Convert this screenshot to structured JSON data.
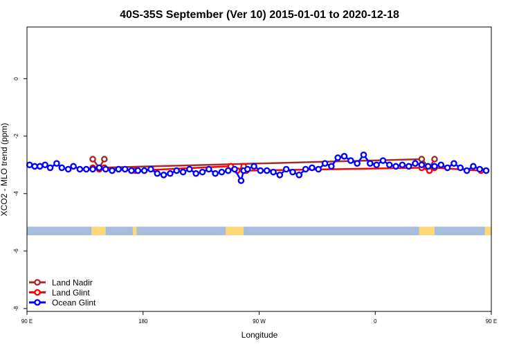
{
  "chart_data": {
    "type": "line",
    "title": "40S-35S September (Ver 10)   2015-01-01 to 2020-12-18",
    "xlabel": "Longitude",
    "ylabel": "XCO2 - MLO trend (ppm)",
    "xlim": [
      90,
      450
    ],
    "ylim": [
      -8.1,
      1.8
    ],
    "x_ticks": [
      {
        "value": 90,
        "label": "90 E"
      },
      {
        "value": 180,
        "label": "180"
      },
      {
        "value": 270,
        "label": "90 W"
      },
      {
        "value": 360,
        "label": "0"
      },
      {
        "value": 450,
        "label": "90 E"
      },
      {
        "value": 540,
        "label": "180"
      }
    ],
    "y_ticks": [
      {
        "value": 0,
        "label": "0"
      },
      {
        "value": -2,
        "label": "-2"
      },
      {
        "value": -4,
        "label": "-4"
      },
      {
        "value": -6,
        "label": "-6"
      },
      {
        "value": -8,
        "label": "-8"
      }
    ],
    "grid": false,
    "legend_position": "bottom-left",
    "series": [
      {
        "name": "Land Nadir",
        "color": "#A52A2A",
        "x": [
          141,
          146,
          150,
          146,
          396,
          402,
          406
        ],
        "y": [
          -2.8,
          -3.1,
          -2.8,
          -3.1,
          -2.8,
          -3.1,
          -2.8
        ]
      },
      {
        "name": "Land Glint",
        "color": "#FF0000",
        "x": [
          141,
          146,
          150,
          174,
          248,
          253,
          258,
          260,
          396,
          402,
          406,
          442
        ],
        "y": [
          -3.1,
          -3.15,
          -3.1,
          -3.2,
          -3.05,
          -3.2,
          -3.05,
          -3.2,
          -3.1,
          -3.2,
          -3.1,
          -3.2
        ]
      },
      {
        "name": "Ocean Glint",
        "color": "#0000FF",
        "x": [
          92,
          96,
          100,
          104,
          108,
          113,
          117,
          122,
          126,
          131,
          136,
          141,
          146,
          151,
          156,
          161,
          166,
          171,
          176,
          181,
          186,
          191,
          196,
          201,
          206,
          211,
          216,
          221,
          226,
          231,
          236,
          241,
          246,
          251,
          256,
          258,
          261,
          266,
          271,
          276,
          281,
          286,
          291,
          296,
          301,
          306,
          311,
          316,
          321,
          326,
          331,
          336,
          341,
          346,
          351,
          356,
          361,
          366,
          371,
          376,
          381,
          386,
          391,
          396,
          401,
          406,
          411,
          416,
          421,
          426,
          431,
          436,
          441,
          446
        ],
        "y": [
          -3.0,
          -3.05,
          -3.05,
          -3.0,
          -3.1,
          -2.95,
          -3.1,
          -3.15,
          -3.05,
          -3.15,
          -3.15,
          -3.15,
          -3.1,
          -3.15,
          -3.2,
          -3.15,
          -3.15,
          -3.2,
          -3.2,
          -3.2,
          -3.15,
          -3.3,
          -3.35,
          -3.3,
          -3.2,
          -3.25,
          -3.15,
          -3.3,
          -3.25,
          -3.15,
          -3.3,
          -3.25,
          -3.2,
          -3.15,
          -3.55,
          -3.2,
          -3.15,
          -3.05,
          -3.2,
          -3.2,
          -3.25,
          -3.35,
          -3.15,
          -3.25,
          -3.35,
          -3.15,
          -3.1,
          -3.15,
          -2.95,
          -3.05,
          -2.75,
          -2.7,
          -2.85,
          -2.95,
          -2.65,
          -2.95,
          -3.0,
          -2.85,
          -3.0,
          -3.05,
          -3.0,
          -3.05,
          -2.95,
          -3.0,
          -3.05,
          -3.05,
          -3.0,
          -3.1,
          -2.95,
          -3.1,
          -3.2,
          -3.05,
          -3.15,
          -3.2
        ]
      }
    ],
    "map_strip": {
      "y_top": -5.15,
      "y_bottom": -5.45,
      "ocean_color": "#A6BDDB",
      "land_color": "#FDD87A",
      "land_segments": [
        [
          140,
          151
        ],
        [
          172,
          175
        ],
        [
          244,
          258
        ],
        [
          394,
          406
        ],
        [
          445,
          450
        ]
      ]
    }
  }
}
